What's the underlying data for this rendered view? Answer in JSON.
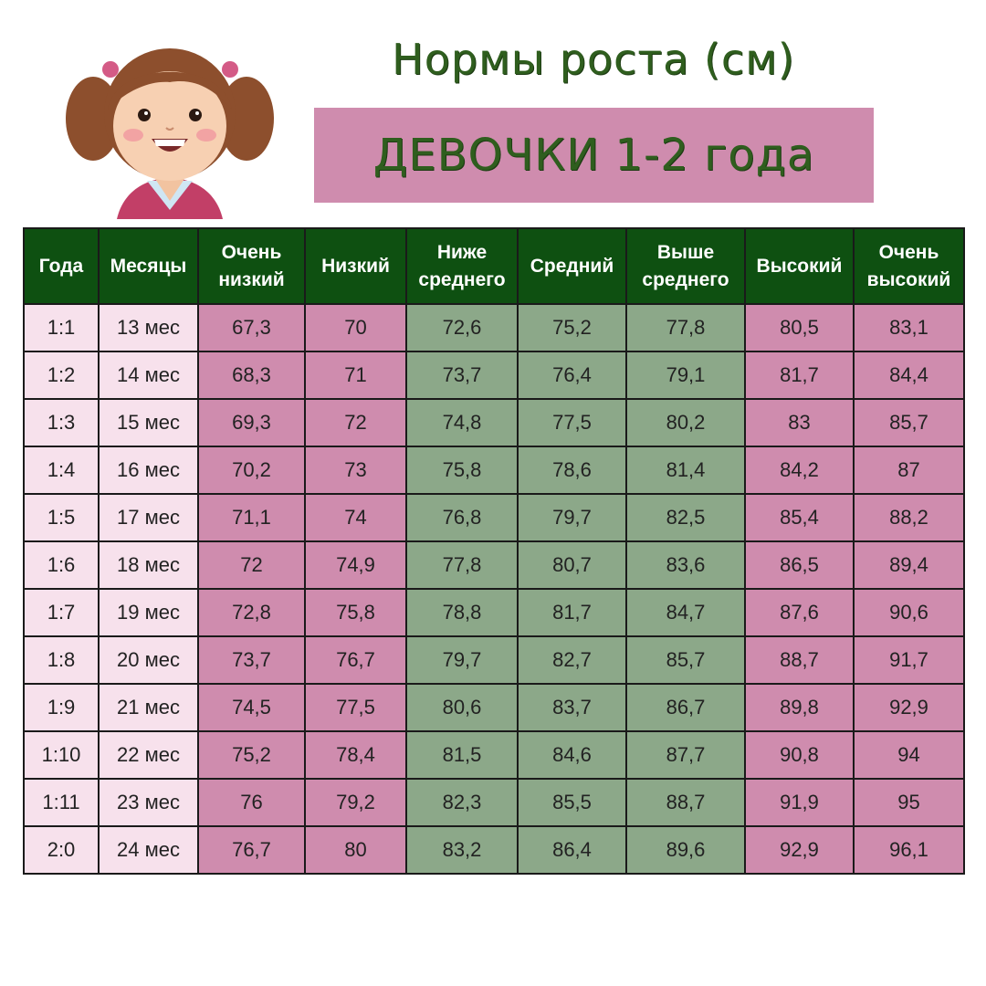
{
  "header": {
    "title": "Нормы роста (см)",
    "subtitle": "ДЕВОЧКИ 1-2 года"
  },
  "colors": {
    "header_bg": "#0e5011",
    "pink": "#cf8cae",
    "light_pink": "#f7e1ec",
    "green": "#8ca889",
    "title_text": "#2f5e1e"
  },
  "table": {
    "columns": [
      "Года",
      "Месяцы",
      "Очень низкий",
      "Низкий",
      "Ниже среднего",
      "Средний",
      "Выше среднего",
      "Высокий",
      "Очень высокий"
    ],
    "rows": [
      [
        "1:1",
        "13 мес",
        "67,3",
        "70",
        "72,6",
        "75,2",
        "77,8",
        "80,5",
        "83,1"
      ],
      [
        "1:2",
        "14 мес",
        "68,3",
        "71",
        "73,7",
        "76,4",
        "79,1",
        "81,7",
        "84,4"
      ],
      [
        "1:3",
        "15 мес",
        "69,3",
        "72",
        "74,8",
        "77,5",
        "80,2",
        "83",
        "85,7"
      ],
      [
        "1:4",
        "16 мес",
        "70,2",
        "73",
        "75,8",
        "78,6",
        "81,4",
        "84,2",
        "87"
      ],
      [
        "1:5",
        "17 мес",
        "71,1",
        "74",
        "76,8",
        "79,7",
        "82,5",
        "85,4",
        "88,2"
      ],
      [
        "1:6",
        "18 мес",
        "72",
        "74,9",
        "77,8",
        "80,7",
        "83,6",
        "86,5",
        "89,4"
      ],
      [
        "1:7",
        "19 мес",
        "72,8",
        "75,8",
        "78,8",
        "81,7",
        "84,7",
        "87,6",
        "90,6"
      ],
      [
        "1:8",
        "20 мес",
        "73,7",
        "76,7",
        "79,7",
        "82,7",
        "85,7",
        "88,7",
        "91,7"
      ],
      [
        "1:9",
        "21 мес",
        "74,5",
        "77,5",
        "80,6",
        "83,7",
        "86,7",
        "89,8",
        "92,9"
      ],
      [
        "1:10",
        "22 мес",
        "75,2",
        "78,4",
        "81,5",
        "84,6",
        "87,7",
        "90,8",
        "94"
      ],
      [
        "1:11",
        "23 мес",
        "76",
        "79,2",
        "82,3",
        "85,5",
        "88,7",
        "91,9",
        "95"
      ],
      [
        "2:0",
        "24 мес",
        "76,7",
        "80",
        "83,2",
        "86,4",
        "89,6",
        "92,9",
        "96,1"
      ]
    ]
  }
}
